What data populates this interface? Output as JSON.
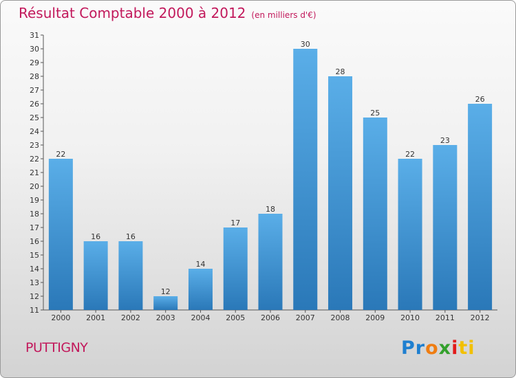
{
  "header": {
    "title": "Résultat Comptable 2000 à 2012",
    "subtitle": "(en milliers d'€)"
  },
  "footer": {
    "commune": "PUTTIGNY",
    "logo": [
      "Pr",
      "o",
      "x",
      "i",
      "ti"
    ]
  },
  "colors": {
    "title": "#c2185b",
    "bar_top": "#5aaee8",
    "bar_bottom": "#2a78b8"
  },
  "chart_data": {
    "type": "bar",
    "title": "Résultat Comptable 2000 à 2012",
    "subtitle": "(en milliers d'€)",
    "xlabel": "",
    "ylabel": "",
    "categories": [
      "2000",
      "2001",
      "2002",
      "2003",
      "2004",
      "2005",
      "2006",
      "2007",
      "2008",
      "2009",
      "2010",
      "2011",
      "2012"
    ],
    "values": [
      22,
      16,
      16,
      12,
      14,
      17,
      18,
      30,
      28,
      25,
      22,
      23,
      26
    ],
    "ylim": [
      11,
      31
    ],
    "yticks": [
      11,
      12,
      13,
      14,
      15,
      16,
      17,
      18,
      19,
      20,
      21,
      22,
      23,
      24,
      25,
      26,
      27,
      28,
      29,
      30,
      31
    ],
    "grid": false,
    "legend": "none"
  }
}
